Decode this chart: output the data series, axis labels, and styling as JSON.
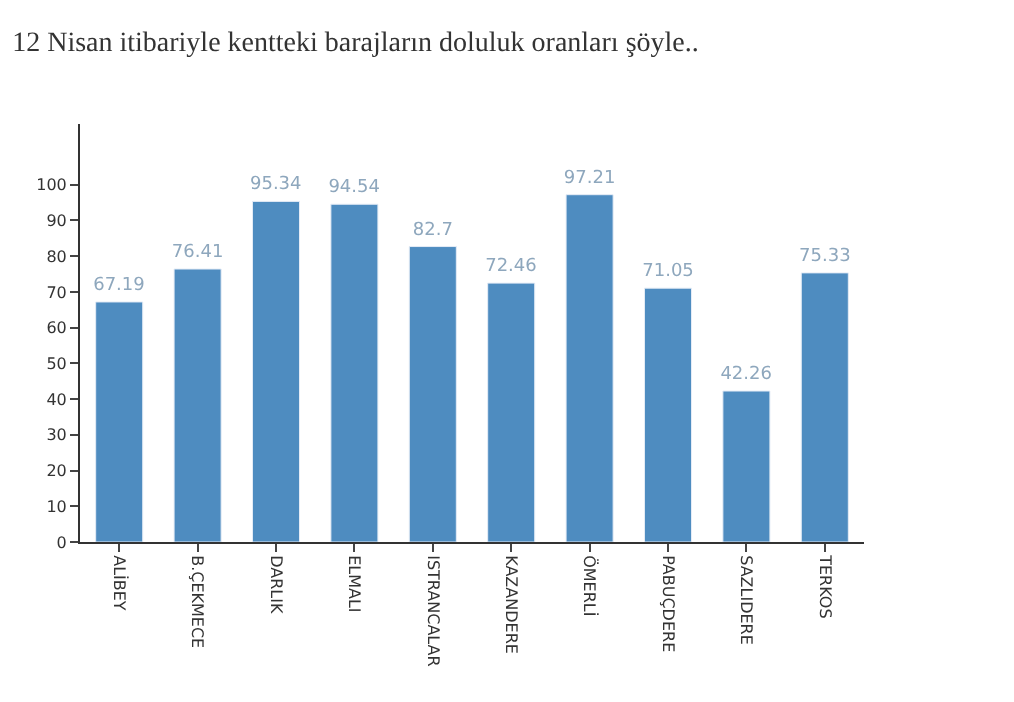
{
  "chart_data": {
    "type": "bar",
    "title": "12 Nisan itibariyle kentteki barajların doluluk oranları şöyle..",
    "categories": [
      "ALİBEY",
      "B.ÇEKMECE",
      "DARLIK",
      "ELMALI",
      "ISTRANCALAR",
      "KAZANDERE",
      "ÖMERLİ",
      "PABUÇDERE",
      "SAZLIDERE",
      "TERKOS"
    ],
    "values": [
      67.19,
      76.41,
      95.34,
      94.54,
      82.7,
      72.46,
      97.21,
      71.05,
      42.26,
      75.33
    ],
    "color": "#4e8cc0",
    "ylim": [
      0,
      117
    ],
    "yticks": [
      0,
      10,
      20,
      30,
      40,
      50,
      60,
      70,
      80,
      90,
      100
    ],
    "data_labels": true
  }
}
